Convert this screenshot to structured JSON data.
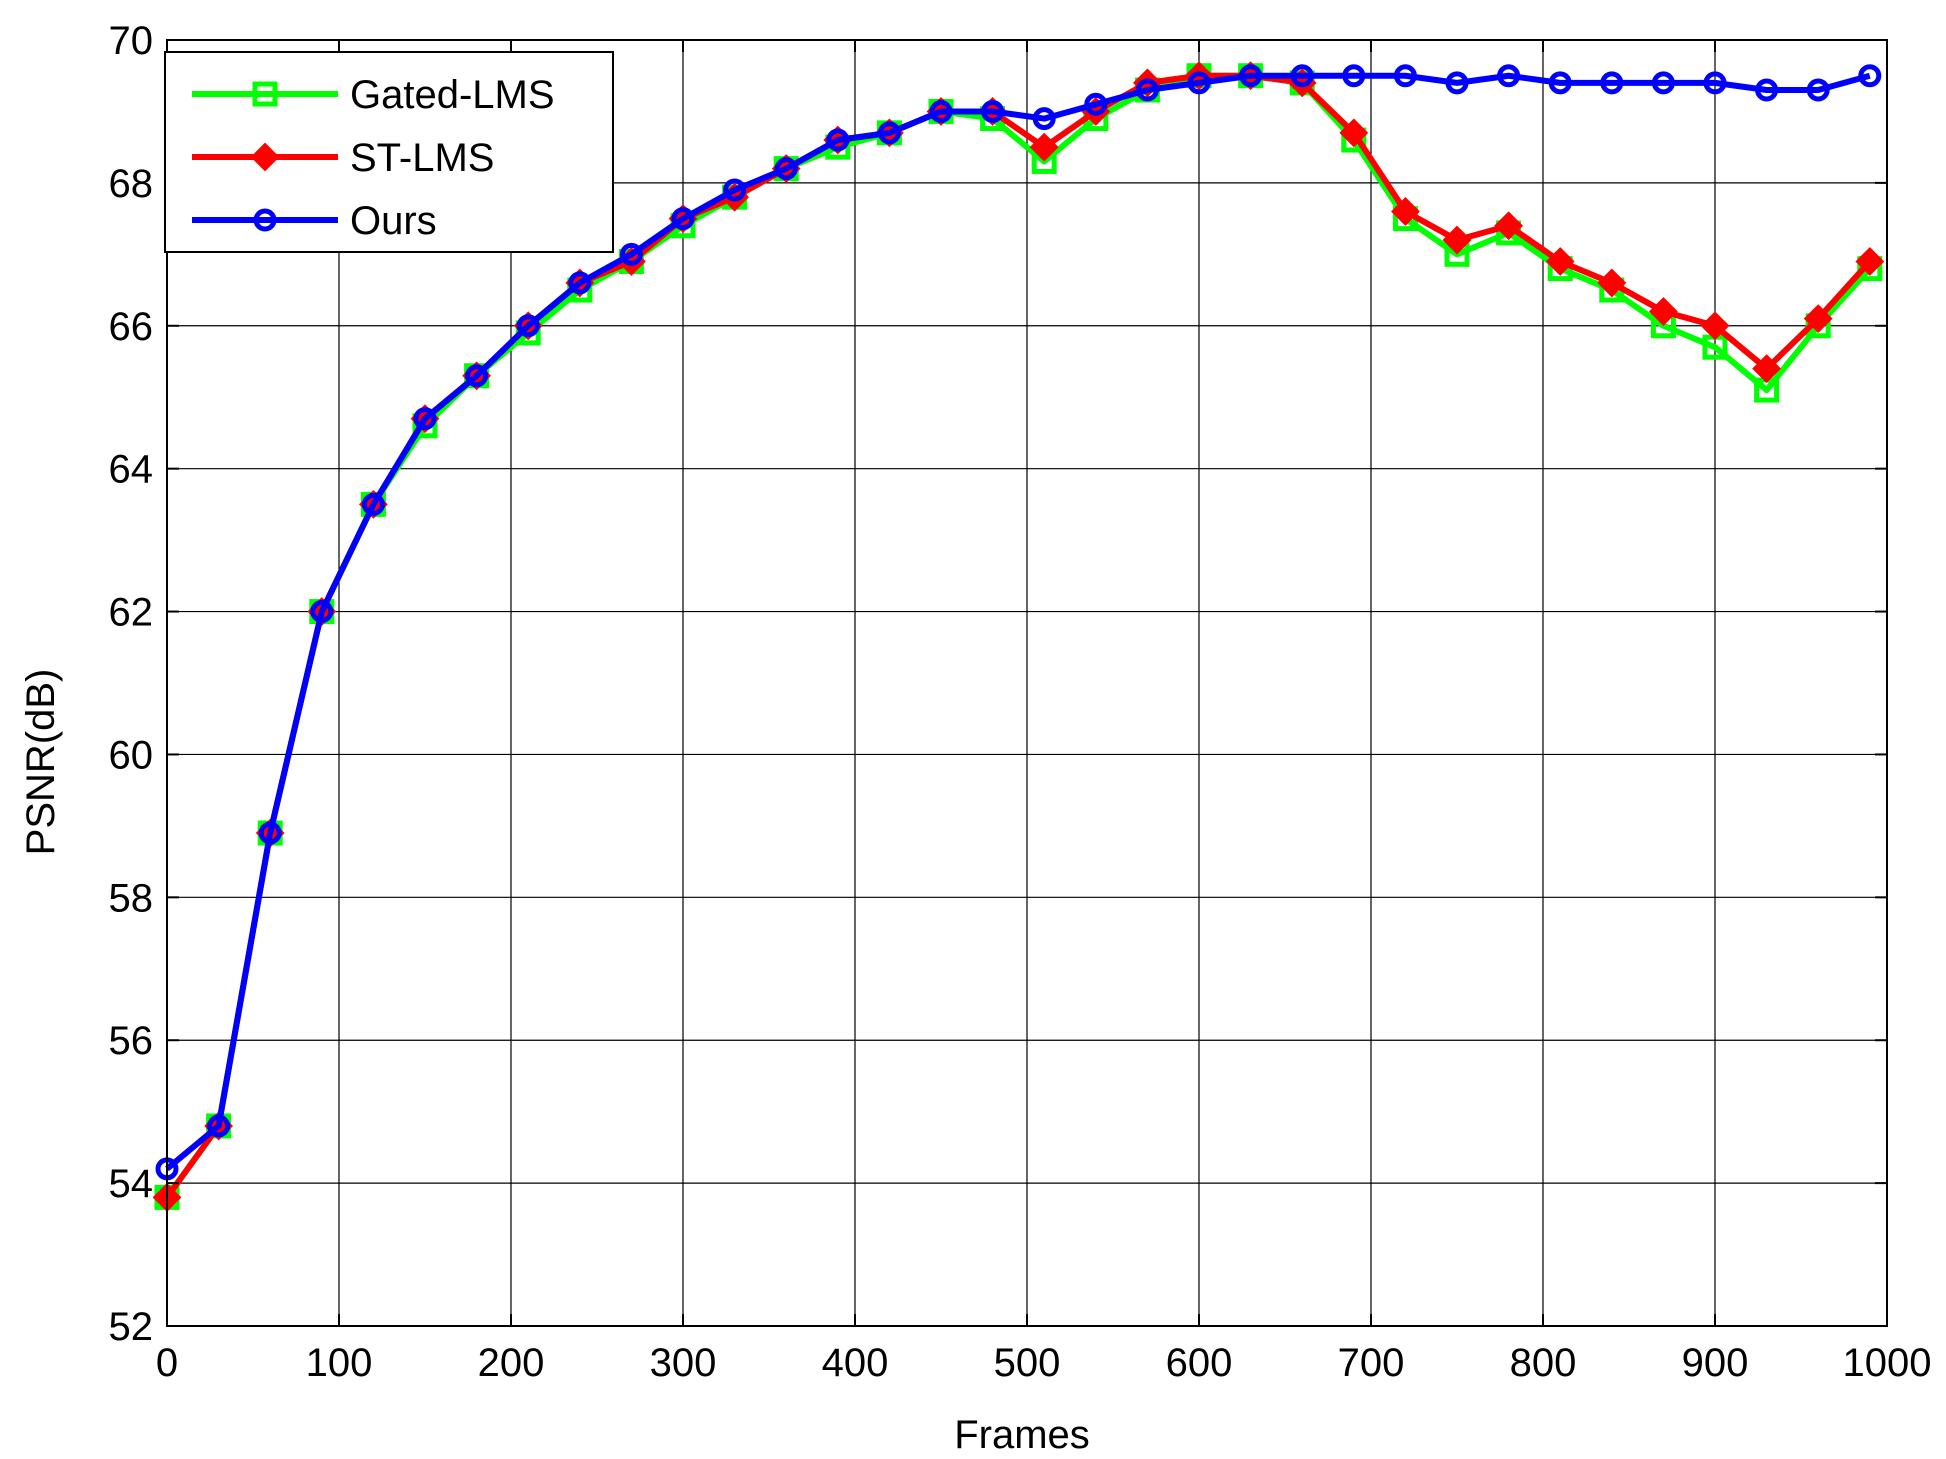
{
  "chart_data": {
    "type": "line",
    "xlabel": "Frames",
    "ylabel": "PSNR(dB)",
    "xlim": [
      0,
      1000
    ],
    "ylim": [
      52,
      70
    ],
    "xticks": [
      "0",
      "100",
      "200",
      "300",
      "400",
      "500",
      "600",
      "700",
      "800",
      "900",
      "1000"
    ],
    "yticks": [
      "52",
      "54",
      "56",
      "58",
      "60",
      "62",
      "64",
      "66",
      "68",
      "70"
    ],
    "grid": true,
    "legend_position": "top-left",
    "series": [
      {
        "name": "Gated-LMS",
        "color": "#00ff00",
        "marker": "square",
        "x": [
          0,
          30,
          60,
          90,
          120,
          150,
          180,
          210,
          240,
          270,
          300,
          330,
          360,
          390,
          420,
          450,
          480,
          510,
          540,
          570,
          600,
          630,
          660,
          690,
          720,
          750,
          780,
          810,
          840,
          870,
          900,
          930,
          960,
          990
        ],
        "values": [
          53.8,
          54.8,
          58.9,
          62.0,
          63.5,
          64.6,
          65.3,
          65.9,
          66.5,
          66.9,
          67.4,
          67.8,
          68.2,
          68.5,
          68.7,
          69.0,
          68.9,
          68.3,
          68.9,
          69.3,
          69.5,
          69.5,
          69.4,
          68.6,
          67.5,
          67.0,
          67.3,
          66.8,
          66.5,
          66.0,
          65.7,
          65.1,
          66.0,
          66.8
        ]
      },
      {
        "name": "ST-LMS",
        "color": "#ff0000",
        "marker": "diamond",
        "x": [
          0,
          30,
          60,
          90,
          120,
          150,
          180,
          210,
          240,
          270,
          300,
          330,
          360,
          390,
          420,
          450,
          480,
          510,
          540,
          570,
          600,
          630,
          660,
          690,
          720,
          750,
          780,
          810,
          840,
          870,
          900,
          930,
          960,
          990
        ],
        "values": [
          53.8,
          54.8,
          58.9,
          62.0,
          63.5,
          64.7,
          65.3,
          66.0,
          66.6,
          66.9,
          67.5,
          67.8,
          68.2,
          68.6,
          68.7,
          69.0,
          69.0,
          68.5,
          69.0,
          69.4,
          69.5,
          69.5,
          69.4,
          68.7,
          67.6,
          67.2,
          67.4,
          66.9,
          66.6,
          66.2,
          66.0,
          65.4,
          66.1,
          66.9
        ]
      },
      {
        "name": "Ours",
        "color": "#0000ff",
        "marker": "circle",
        "x": [
          0,
          30,
          60,
          90,
          120,
          150,
          180,
          210,
          240,
          270,
          300,
          330,
          360,
          390,
          420,
          450,
          480,
          510,
          540,
          570,
          600,
          630,
          660,
          690,
          720,
          750,
          780,
          810,
          840,
          870,
          900,
          930,
          960,
          990
        ],
        "values": [
          54.2,
          54.8,
          58.9,
          62.0,
          63.5,
          64.7,
          65.3,
          66.0,
          66.6,
          67.0,
          67.5,
          67.9,
          68.2,
          68.6,
          68.7,
          69.0,
          69.0,
          68.9,
          69.1,
          69.3,
          69.4,
          69.5,
          69.5,
          69.5,
          69.5,
          69.4,
          69.5,
          69.4,
          69.4,
          69.4,
          69.4,
          69.3,
          69.3,
          69.5
        ]
      }
    ]
  }
}
